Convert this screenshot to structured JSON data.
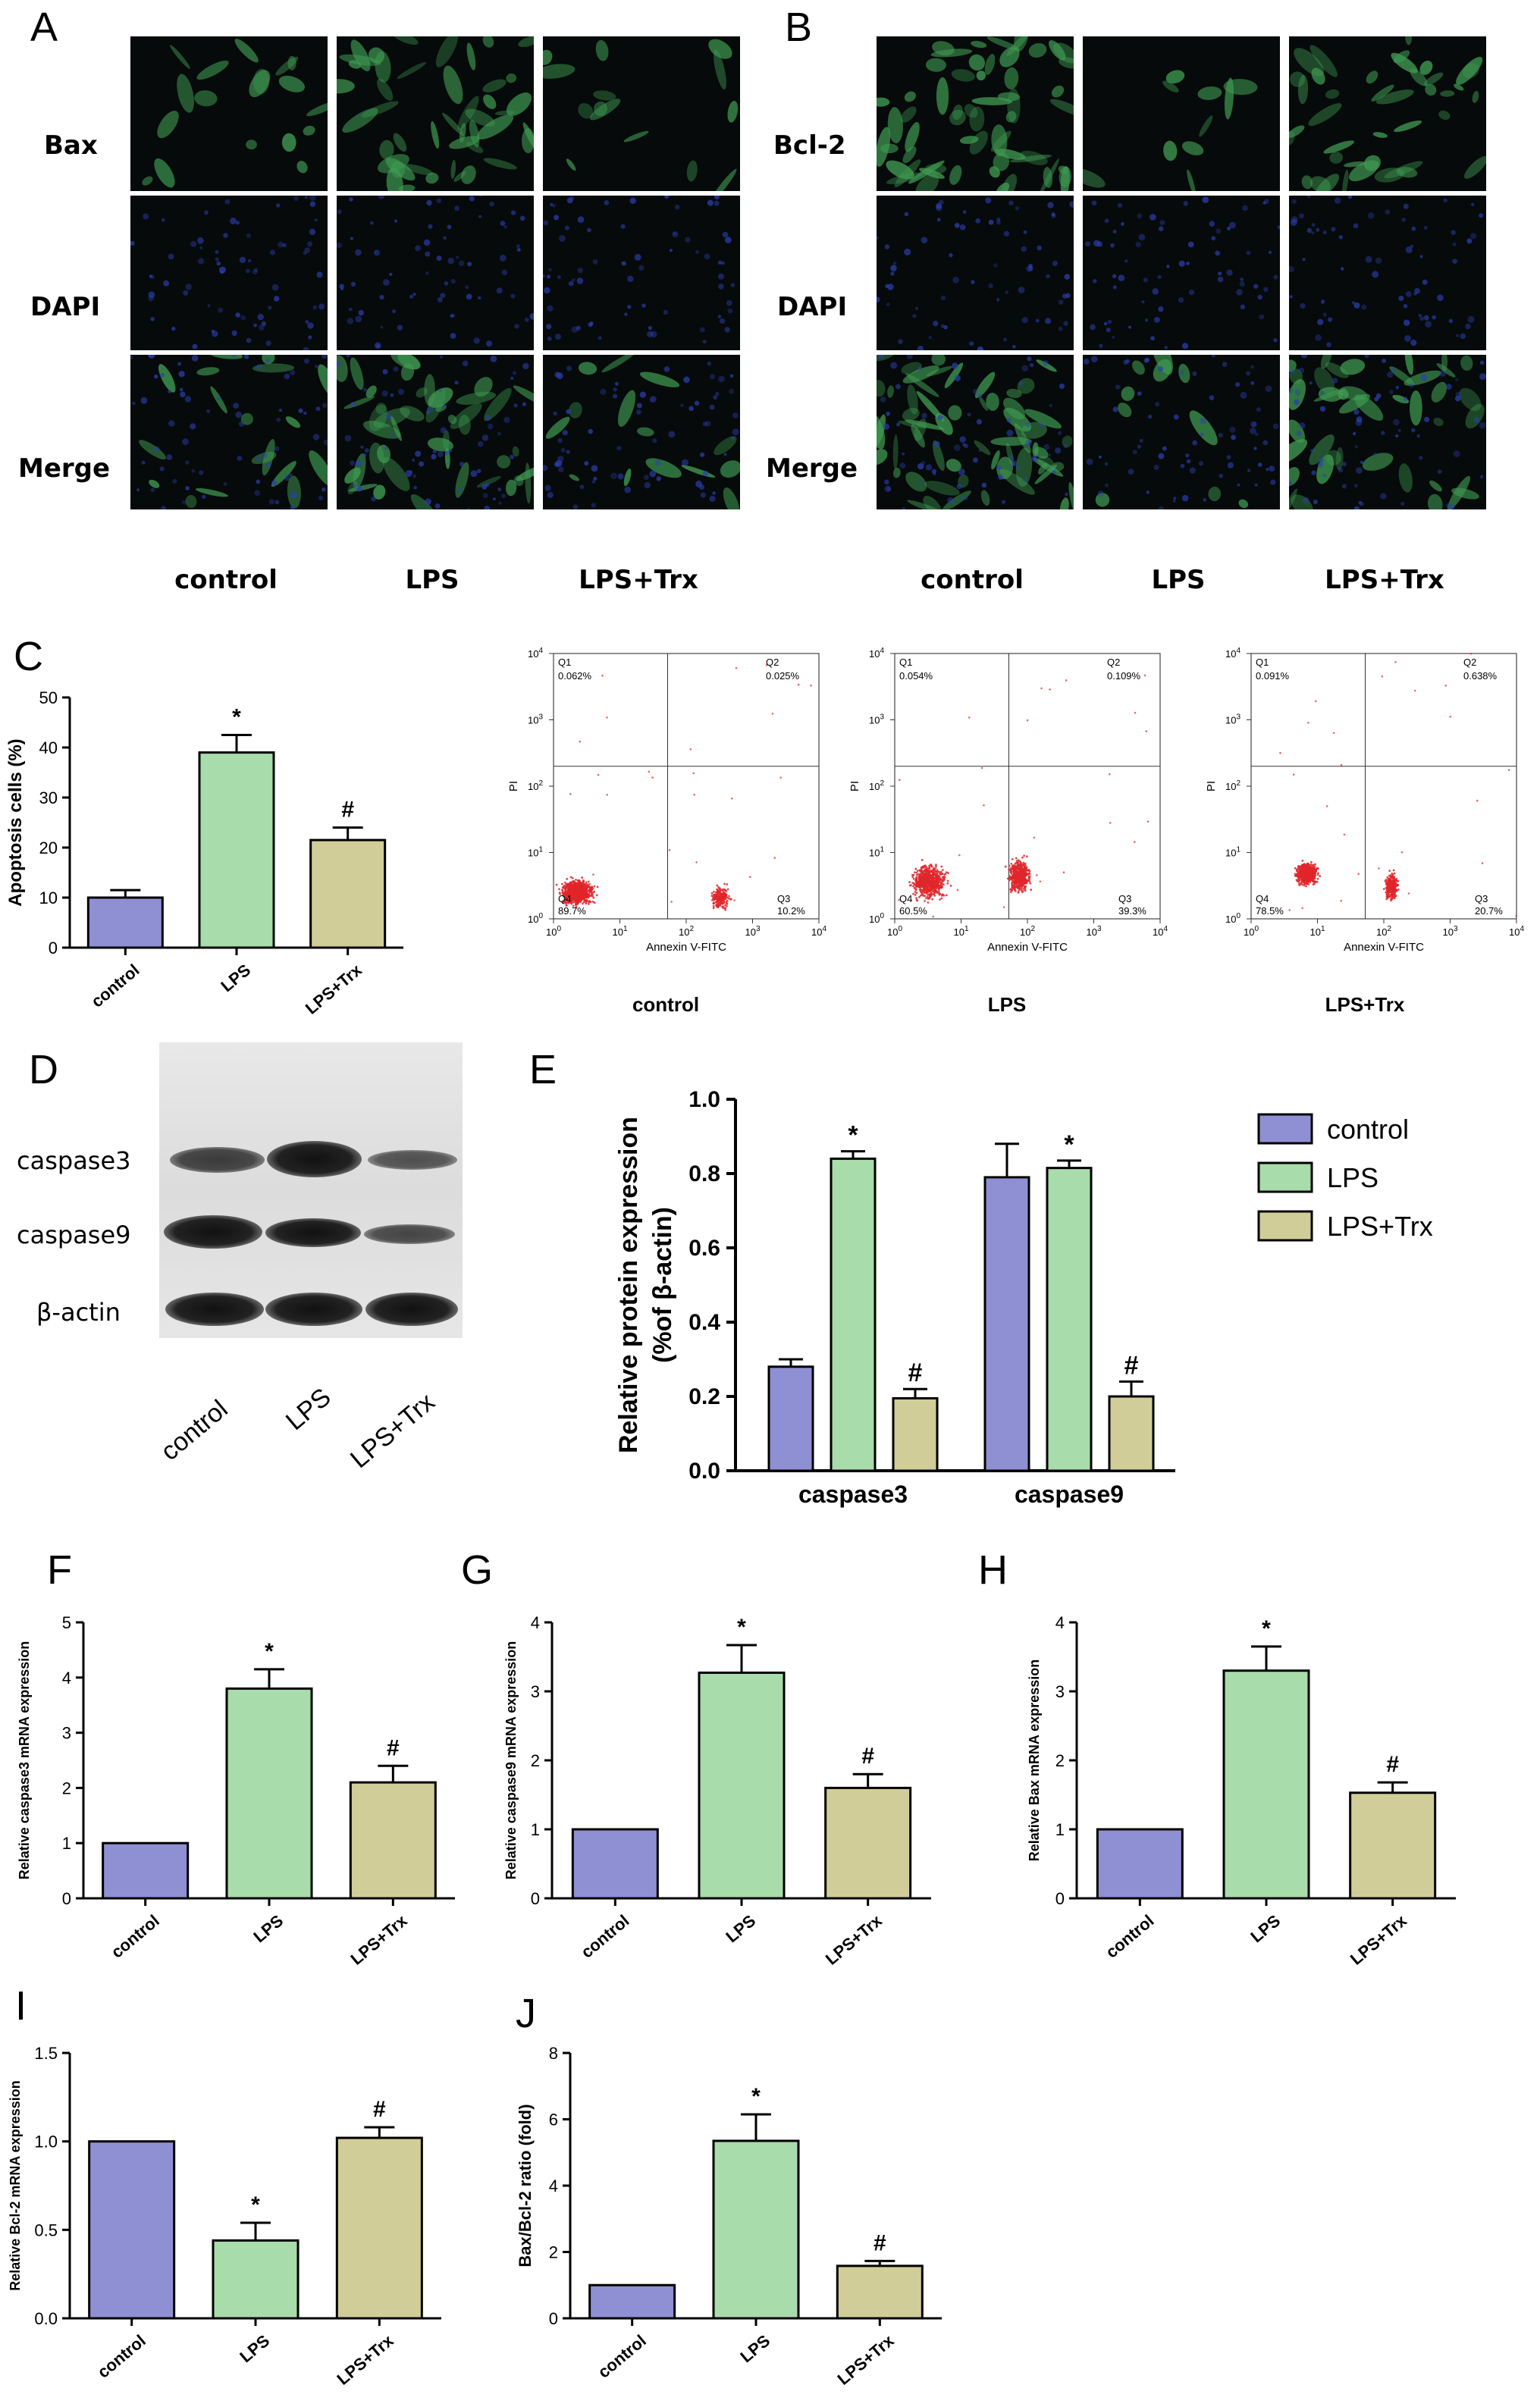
{
  "panel_labels": {
    "A": "A",
    "B": "B",
    "C": "C",
    "D": "D",
    "E": "E",
    "F": "F",
    "G": "G",
    "H": "H",
    "I": "I",
    "J": "J"
  },
  "panel_A": {
    "rows": [
      "Bax",
      "DAPI",
      "Merge"
    ],
    "columns": [
      "control",
      "LPS",
      "LPS+Trx"
    ]
  },
  "panel_B": {
    "rows": [
      "Bcl-2",
      "DAPI",
      "Merge"
    ],
    "columns": [
      "control",
      "LPS",
      "LPS+Trx"
    ]
  },
  "flow": {
    "ylabel": "PI",
    "xlabel": "Annexin V-FITC",
    "ticks": [
      "10",
      "10",
      "10",
      "10",
      "10"
    ],
    "tick_exps": [
      "0",
      "1",
      "2",
      "3",
      "4"
    ],
    "plots": [
      {
        "title": "control",
        "Q1": "Q1",
        "q1": "0.062%",
        "Q2": "Q2",
        "q2": "0.025%",
        "Q3": "Q3",
        "q3": "10.2%",
        "Q4": "Q4",
        "q4": "89.7%"
      },
      {
        "title": "LPS",
        "Q1": "Q1",
        "q1": "0.054%",
        "Q2": "Q2",
        "q2": "0.109%",
        "Q3": "Q3",
        "q3": "39.3%",
        "Q4": "Q4",
        "q4": "60.5%"
      },
      {
        "title": "LPS+Trx",
        "Q1": "Q1",
        "q1": "0.091%",
        "Q2": "Q2",
        "q2": "0.638%",
        "Q3": "Q3",
        "q3": "20.7%",
        "Q4": "Q4",
        "q4": "78.5%"
      }
    ]
  },
  "panel_D": {
    "rows": [
      "caspase3",
      "caspase9",
      "β-actin"
    ],
    "lanes": [
      "control",
      "LPS",
      "LPS+Trx"
    ]
  },
  "colors": {
    "control": "#8f8fd3",
    "LPS": "#a8dcaa",
    "LPS+Trx": "#d1cd98"
  },
  "chart_data": [
    {
      "panel": "C",
      "type": "bar",
      "categories": [
        "control",
        "LPS",
        "LPS+Trx"
      ],
      "values": [
        10,
        39,
        21.5
      ],
      "errors": [
        1.5,
        3.5,
        2.5
      ],
      "marks": [
        "",
        "*",
        "#"
      ],
      "ylabel": "Apoptosis cells (%)",
      "ylim": [
        0,
        50
      ],
      "yticks": [
        "0",
        "10",
        "20",
        "30",
        "40",
        "50"
      ]
    },
    {
      "panel": "E",
      "type": "bar",
      "categories": [
        "caspase3",
        "caspase9"
      ],
      "series": [
        {
          "name": "control",
          "values": [
            0.28,
            0.79
          ],
          "errors": [
            0.02,
            0.09
          ],
          "marks": [
            "",
            ""
          ]
        },
        {
          "name": "LPS",
          "values": [
            0.84,
            0.815
          ],
          "errors": [
            0.02,
            0.02
          ],
          "marks": [
            "*",
            "*"
          ]
        },
        {
          "name": "LPS+Trx",
          "values": [
            0.195,
            0.2
          ],
          "errors": [
            0.025,
            0.04
          ],
          "marks": [
            "#",
            "#"
          ]
        }
      ],
      "ylabel": "Relative protein expression",
      "ylabel2": "(%of β-actin)",
      "ylim": [
        0,
        1.0
      ],
      "yticks": [
        "0.0",
        "0.2",
        "0.4",
        "0.6",
        "0.8",
        "1.0"
      ],
      "legend": "right"
    },
    {
      "panel": "F",
      "type": "bar",
      "categories": [
        "control",
        "LPS",
        "LPS+Trx"
      ],
      "values": [
        1.0,
        3.8,
        2.1
      ],
      "errors": [
        0,
        0.35,
        0.3
      ],
      "marks": [
        "",
        "*",
        "#"
      ],
      "ylabel": "Relative caspase3 mRNA expression",
      "ylim": [
        0,
        5
      ],
      "yticks": [
        "0",
        "1",
        "2",
        "3",
        "4",
        "5"
      ]
    },
    {
      "panel": "G",
      "type": "bar",
      "categories": [
        "control",
        "LPS",
        "LPS+Trx"
      ],
      "values": [
        1.0,
        3.27,
        1.6
      ],
      "errors": [
        0,
        0.4,
        0.2
      ],
      "marks": [
        "",
        "*",
        "#"
      ],
      "ylabel": "Relative caspase9 mRNA expression",
      "ylim": [
        0,
        4
      ],
      "yticks": [
        "0",
        "1",
        "2",
        "3",
        "4"
      ]
    },
    {
      "panel": "H",
      "type": "bar",
      "categories": [
        "control",
        "LPS",
        "LPS+Trx"
      ],
      "values": [
        1.0,
        3.3,
        1.53
      ],
      "errors": [
        0,
        0.35,
        0.15
      ],
      "marks": [
        "",
        "*",
        "#"
      ],
      "ylabel": "Relative Bax mRNA expression",
      "ylim": [
        0,
        4
      ],
      "yticks": [
        "0",
        "1",
        "2",
        "3",
        "4"
      ]
    },
    {
      "panel": "I",
      "type": "bar",
      "categories": [
        "control",
        "LPS",
        "LPS+Trx"
      ],
      "values": [
        1.0,
        0.44,
        1.02
      ],
      "errors": [
        0,
        0.1,
        0.06
      ],
      "marks": [
        "",
        "*",
        "#"
      ],
      "ylabel": "Relative Bcl-2 mRNA expression",
      "ylim": [
        0,
        1.5
      ],
      "yticks": [
        "0.0",
        "0.5",
        "1.0",
        "1.5"
      ]
    },
    {
      "panel": "J",
      "type": "bar",
      "categories": [
        "control",
        "LPS",
        "LPS+Trx"
      ],
      "values": [
        1.0,
        5.35,
        1.58
      ],
      "errors": [
        0,
        0.8,
        0.15
      ],
      "marks": [
        "",
        "*",
        "#"
      ],
      "ylabel": "Bax/Bcl-2 ratio (fold)",
      "ylim": [
        0,
        8
      ],
      "yticks": [
        "0",
        "2",
        "4",
        "6",
        "8"
      ]
    }
  ]
}
